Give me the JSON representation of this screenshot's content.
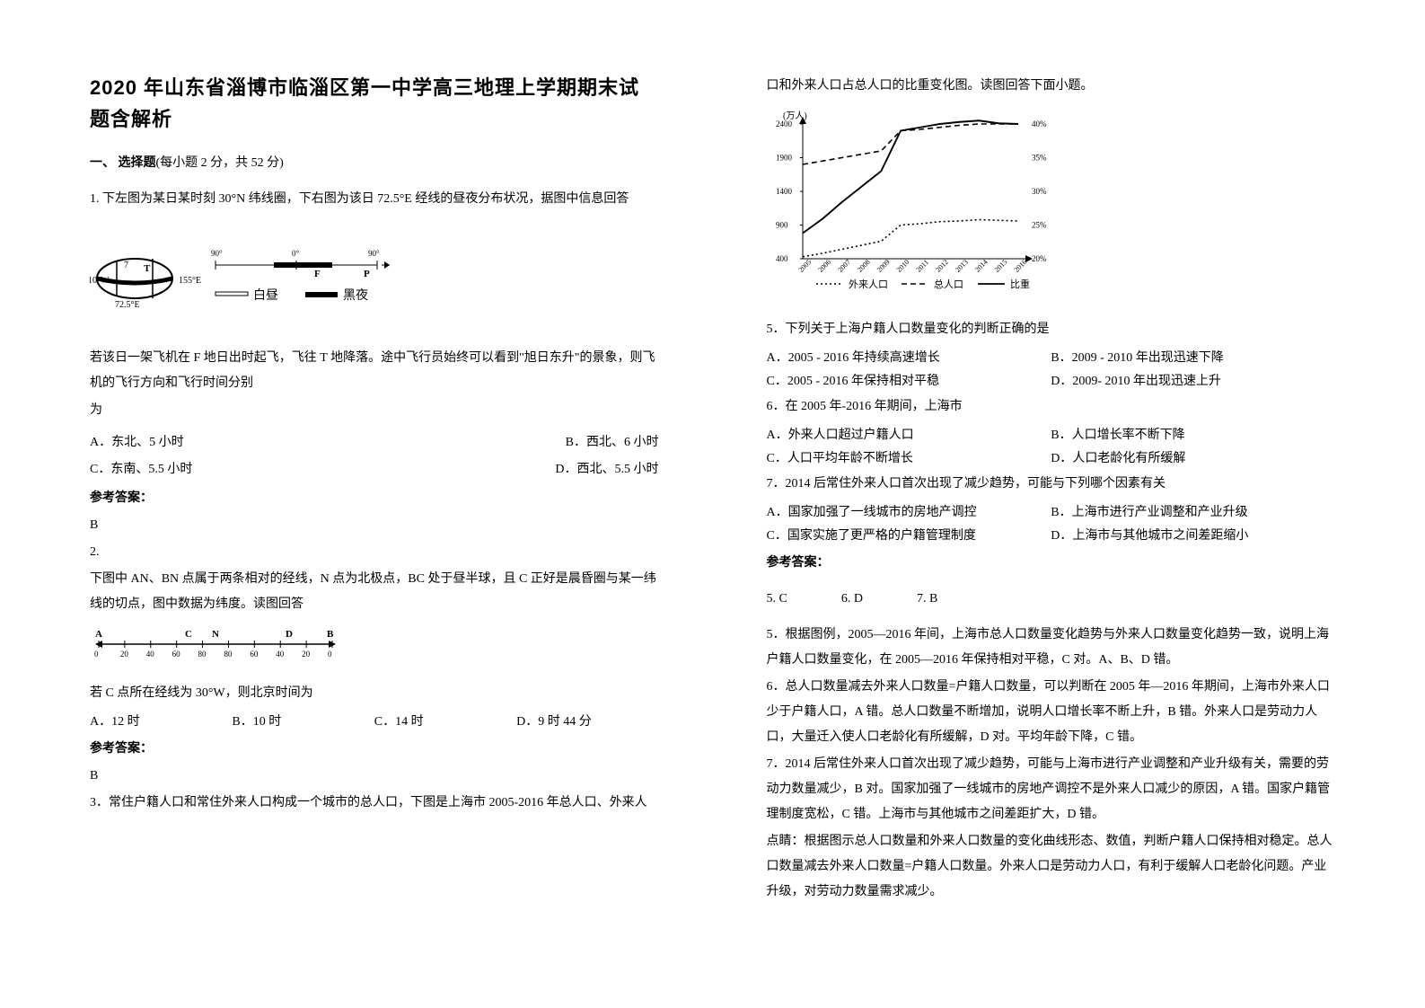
{
  "title": "2020 年山东省淄博市临淄区第一中学高三地理上学期期末试题含解析",
  "section1_head": "一、  选择题",
  "section1_paren": "(每小题 2 分，共 52 分)",
  "q1_stem": "1. 下左图为某日某时刻 30°N 纬线圈，下右图为该日 72.5°E 经线的昼夜分布状况，据图中信息回答",
  "q1_fig": {
    "left": {
      "label_10w": "10°W",
      "label_7": "7",
      "label_155e": "155°E",
      "label_725e": "72.5°E",
      "label_T": "T"
    },
    "right_scale": [
      "90°",
      "0°",
      "90°"
    ],
    "label_F": "F",
    "label_P": "P",
    "legend_day": "白昼",
    "legend_night": "黑夜"
  },
  "q1_cond": "若该日一架飞机在 F 地日出时起飞，飞往 T 地降落。途中飞行员始终可以看到\"旭日东升\"的景象，则飞机的飞行方向和飞行时间分别",
  "q1_cond2": "为",
  "q1_opts": {
    "a": "A．东北、5 小时",
    "b": "B．西北、6 小时",
    "c": "C．东南、5.5 小时",
    "d": "D．西北、5.5 小时"
  },
  "q1_ans_h": "参考答案：",
  "q1_ans": "B",
  "q2_num": "2.",
  "q2_stem": "  下图中 AN、BN 点属于两条相对的经线，N 点为北极点，BC 处于昼半球，且 C 正好是晨昏圈与某一纬线的切点，图中数据为纬度。读图回答",
  "q2_fig": {
    "labels": [
      "A",
      "C",
      "N",
      "D",
      "B"
    ],
    "ticks": [
      "0",
      "20",
      "40",
      "60",
      "80",
      "80",
      "60",
      "40",
      "20",
      "0"
    ]
  },
  "q2_cond": "若 C 点所在经线为 30°W，则北京时间为",
  "q2_opts": {
    "a": "A．12 时",
    "b": "B．10 时",
    "c": "C．14 时",
    "d": "D．9 时 44 分"
  },
  "q2_ans_h": "参考答案：",
  "q2_ans": "B",
  "q3_stem": "3．常住户籍人口和常住外来人口构成一个城市的总人口，下图是上海市 2005-2016 年总人口、外来人",
  "q3_cont": "口和外来人口占总人口的比重变化图。读图回答下面小题。",
  "chart": {
    "y_label": "(万人)",
    "y_ticks": [
      "2400",
      "1900",
      "1400",
      "900",
      "400"
    ],
    "pct_ticks": [
      "40%",
      "35%",
      "30%",
      "25%",
      "20%"
    ],
    "x_ticks": [
      "2005",
      "2006",
      "2007",
      "2008",
      "2009",
      "2010",
      "2011",
      "2012",
      "2013",
      "2014",
      "2015",
      "2016"
    ],
    "legend": {
      "l1": "外来人口",
      "l2": "总人口",
      "l3": "比重"
    },
    "series_total": [
      1800,
      1850,
      1900,
      1950,
      2000,
      2300,
      2320,
      2350,
      2380,
      2400,
      2400,
      2400
    ],
    "series_wai": [
      430,
      480,
      540,
      600,
      660,
      900,
      920,
      950,
      960,
      980,
      970,
      960
    ],
    "series_ratio": [
      23.8,
      25.9,
      28.4,
      30.7,
      33,
      39,
      39.5,
      40,
      40.3,
      40.5,
      40.1,
      40
    ],
    "colors": {
      "total": "#000",
      "wai": "#000",
      "ratio": "#000",
      "axis": "#000"
    }
  },
  "q5": "5．下列关于上海户籍人口数量变化的判断正确的是",
  "q5_opts": {
    "a": "A．2005 - 2016 年持续高速增长",
    "b": "B．2009 - 2010 年出现迅速下降",
    "c": "C．2005 - 2016 年保持相对平稳",
    "d": "D．2009- 2010 年出现迅速上升"
  },
  "q6": "6．在 2005 年-2016 年期间，上海市",
  "q6_opts": {
    "a": "A．外来人口超过户籍人口",
    "b": "B．人口增长率不断下降",
    "c": "C．人口平均年龄不断增长",
    "d": "D．人口老龄化有所缓解"
  },
  "q7": "7．2014 后常住外来人口首次出现了减少趋势，可能与下列哪个因素有关",
  "q7_opts": {
    "a": "A．国家加强了一线城市的房地产调控",
    "b": "B．上海市进行产业调整和产业升级",
    "c": "C．国家实施了更严格的户籍管理制度",
    "d": "D．上海市与其他城市之间差距缩小"
  },
  "ans_h": "参考答案：",
  "ans_row": {
    "a5": "5. C",
    "a6": "6. D",
    "a7": "7. B"
  },
  "expl": [
    "5．根据图例，2005—2016 年间，上海市总人口数量变化趋势与外来人口数量变化趋势一致，说明上海户籍人口数量变化，在 2005—2016 年保持相对平稳，C 对。A、B、D 错。",
    "6．总人口数量减去外来人口数量=户籍人口数量，可以判断在 2005 年—2016 年期间，上海市外来人口少于户籍人口，A 错。总人口数量不断增加，说明人口增长率不断上升，B 错。外来人口是劳动力人口，大量迁入使人口老龄化有所缓解，D 对。平均年龄下降，C 错。",
    "7．2014 后常住外来人口首次出现了减少趋势，可能与上海市进行产业调整和产业升级有关，需要的劳动力数量减少，B 对。国家加强了一线城市的房地产调控不是外来人口减少的原因，A 错。国家户籍管理制度宽松，C 错。上海市与其他城市之间差距扩大，D 错。",
    "点睛：根据图示总人口数量和外来人口数量的变化曲线形态、数值，判断户籍人口保持相对稳定。总人口数量减去外来人口数量=户籍人口数量。外来人口是劳动力人口，有利于缓解人口老龄化问题。产业升级，对劳动力数量需求减少。"
  ]
}
